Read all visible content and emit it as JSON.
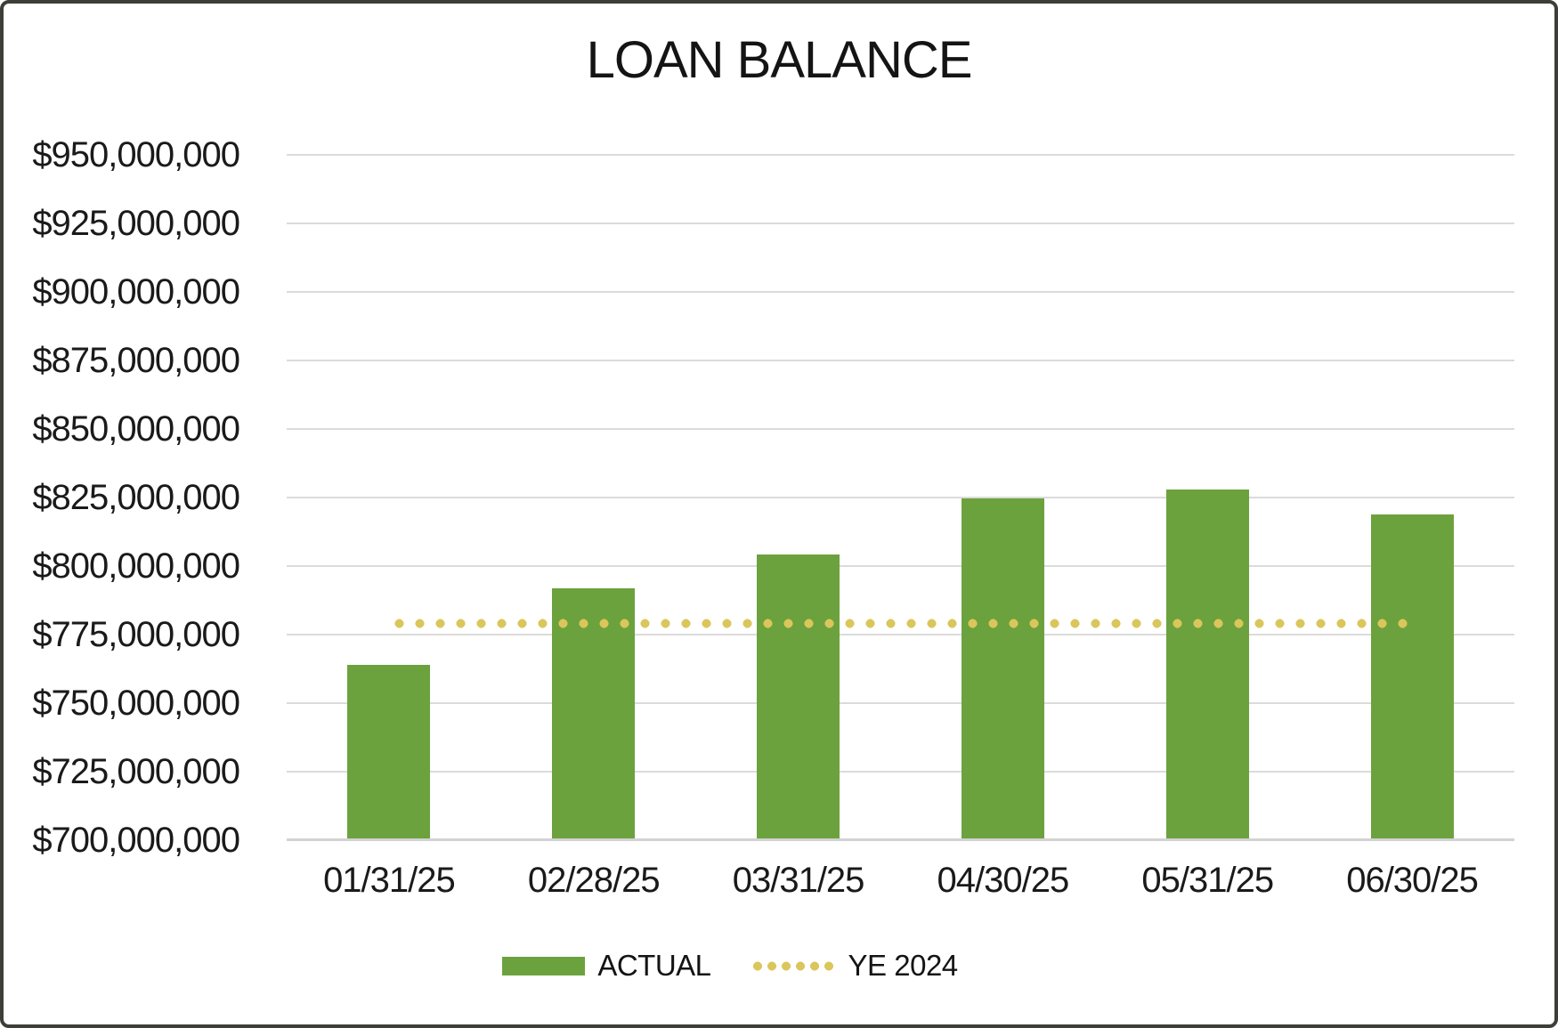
{
  "chart_data": {
    "type": "bar",
    "title": "LOAN BALANCE",
    "categories": [
      "01/31/25",
      "02/28/25",
      "03/31/25",
      "04/30/25",
      "05/31/25",
      "06/30/25"
    ],
    "series": [
      {
        "name": "ACTUAL",
        "type": "bar",
        "color": "#6ca23d",
        "values": [
          763500000,
          791500000,
          804000000,
          824500000,
          827500000,
          818500000
        ]
      },
      {
        "name": "YE 2024",
        "type": "dotted-line",
        "color": "#dbc65c",
        "values": [
          779000000,
          779000000,
          779000000,
          779000000,
          779000000,
          779000000
        ]
      }
    ],
    "ylim": [
      700000000,
      950000000
    ],
    "ytick_step": 25000000,
    "ytick_labels": [
      "$950,000,000",
      "$925,000,000",
      "$900,000,000",
      "$875,000,000",
      "$850,000,000",
      "$825,000,000",
      "$800,000,000",
      "$775,000,000",
      "$750,000,000",
      "$725,000,000",
      "$700,000,000"
    ],
    "xlabel": "",
    "ylabel": "",
    "grid": "horizontal",
    "gridline_color": "#dbdbdb",
    "legend_position": "bottom",
    "border_color": "#3e3e38",
    "text_color": "#1a1a1a"
  }
}
